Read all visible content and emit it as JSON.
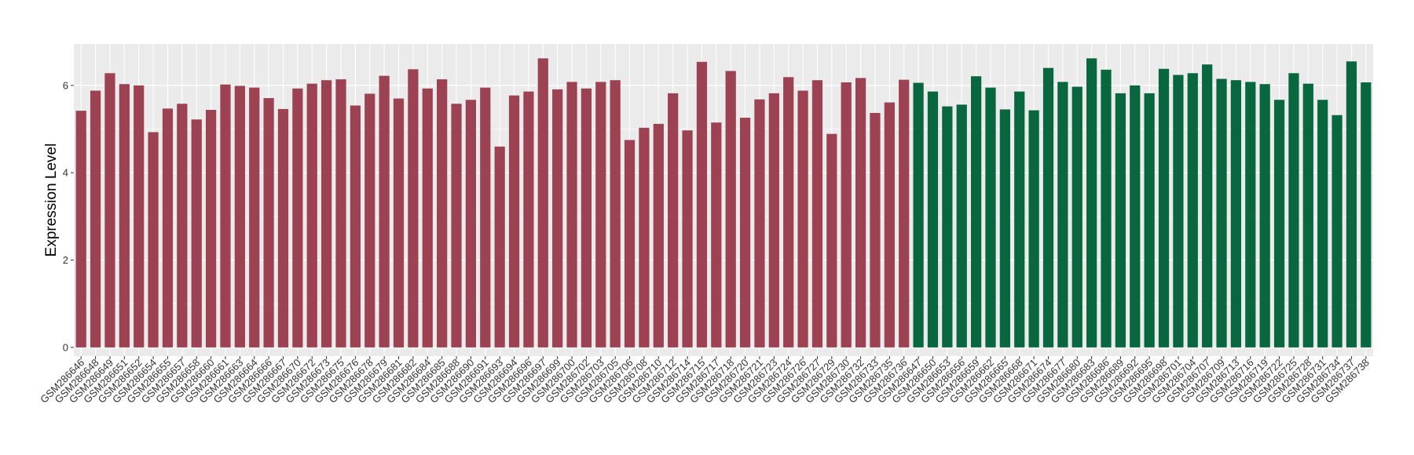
{
  "chart_data": {
    "type": "bar",
    "title": "",
    "xlabel": "",
    "ylabel": "Expression Level",
    "ylim": [
      -0.2,
      6.95
    ],
    "yticks": [
      0,
      2,
      4,
      6
    ],
    "grid": true,
    "legend": "none",
    "colors": {
      "group1": "#9c4252",
      "group2": "#08673f",
      "panel": "#ebebeb",
      "grid": "#ffffff"
    },
    "series": [
      {
        "color": "#9c4252",
        "categories": [
          "GSM286646",
          "GSM286648",
          "GSM286649",
          "GSM286651",
          "GSM286652",
          "GSM286654",
          "GSM286655",
          "GSM286657",
          "GSM286658",
          "GSM286660",
          "GSM286661",
          "GSM286663",
          "GSM286664",
          "GSM286666",
          "GSM286667",
          "GSM286670",
          "GSM286672",
          "GSM286673",
          "GSM286675",
          "GSM286676",
          "GSM286678",
          "GSM286679",
          "GSM286681",
          "GSM286682",
          "GSM286684",
          "GSM286685",
          "GSM286688",
          "GSM286690",
          "GSM286691",
          "GSM286693",
          "GSM286694",
          "GSM286696",
          "GSM286697",
          "GSM286699",
          "GSM286700",
          "GSM286702",
          "GSM286703",
          "GSM286705",
          "GSM286706",
          "GSM286708",
          "GSM286710",
          "GSM286712",
          "GSM286714",
          "GSM286715",
          "GSM286717",
          "GSM286718",
          "GSM286720",
          "GSM286721",
          "GSM286723",
          "GSM286724",
          "GSM286726",
          "GSM286727",
          "GSM286729",
          "GSM286730",
          "GSM286732",
          "GSM286733",
          "GSM286735",
          "GSM286736"
        ],
        "values": [
          5.42,
          5.88,
          6.28,
          6.03,
          6.0,
          4.93,
          5.47,
          5.58,
          5.22,
          5.44,
          6.02,
          5.99,
          5.95,
          5.71,
          5.46,
          5.93,
          6.04,
          6.12,
          6.14,
          5.54,
          5.81,
          6.22,
          5.7,
          6.37,
          5.93,
          6.14,
          5.58,
          5.67,
          5.95,
          4.6,
          5.77,
          5.86,
          6.62,
          5.91,
          6.08,
          5.93,
          6.08,
          6.12,
          4.75,
          5.03,
          5.12,
          5.82,
          4.97,
          6.54,
          5.15,
          6.33,
          5.26,
          5.68,
          5.82,
          6.19,
          5.88,
          6.12,
          4.89,
          6.07,
          6.17,
          5.37,
          5.61,
          6.13
        ]
      },
      {
        "color": "#08673f",
        "categories": [
          "GSM286647",
          "GSM286650",
          "GSM286653",
          "GSM286656",
          "GSM286659",
          "GSM286662",
          "GSM286665",
          "GSM286668",
          "GSM286671",
          "GSM286674",
          "GSM286677",
          "GSM286680",
          "GSM286683",
          "GSM286686",
          "GSM286689",
          "GSM286692",
          "GSM286695",
          "GSM286698",
          "GSM286701",
          "GSM286704",
          "GSM286707",
          "GSM286709",
          "GSM286713",
          "GSM286716",
          "GSM286719",
          "GSM286722",
          "GSM286725",
          "GSM286728",
          "GSM286731",
          "GSM286734",
          "GSM286737",
          "GSM286738"
        ],
        "values": [
          6.06,
          5.86,
          5.52,
          5.56,
          6.21,
          5.95,
          5.45,
          5.86,
          5.43,
          6.4,
          6.08,
          5.97,
          6.62,
          6.36,
          5.82,
          6.0,
          5.82,
          6.38,
          6.24,
          6.28,
          6.48,
          6.15,
          6.12,
          6.08,
          6.03,
          5.67,
          6.28,
          6.04,
          5.67,
          5.32,
          6.55,
          6.07
        ]
      }
    ]
  }
}
